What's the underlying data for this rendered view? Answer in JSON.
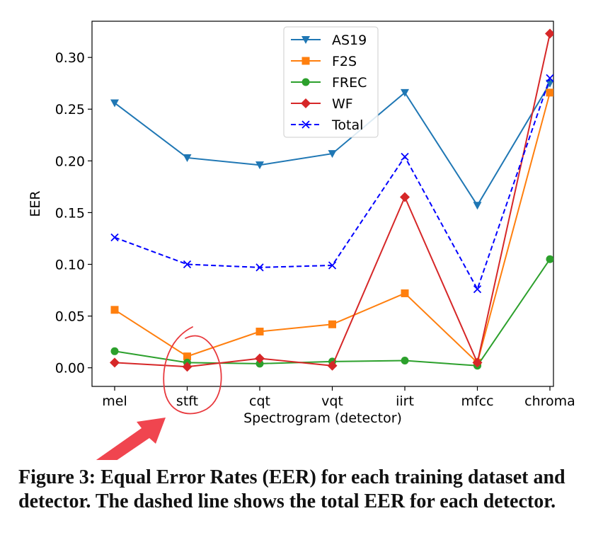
{
  "chart_data": {
    "type": "line",
    "xlabel": "Spectrogram (detector)",
    "ylabel": "EER",
    "categories": [
      "mel",
      "stft",
      "cqt",
      "vqt",
      "iirt",
      "mfcc",
      "chroma"
    ],
    "ylim": [
      -0.018,
      0.335
    ],
    "yticks": [
      0.0,
      0.05,
      0.1,
      0.15,
      0.2,
      0.25,
      0.3
    ],
    "ytick_labels": [
      "0.00",
      "0.05",
      "0.10",
      "0.15",
      "0.20",
      "0.25",
      "0.30"
    ],
    "grid": false,
    "legend_position": "top-center",
    "series": [
      {
        "name": "AS19",
        "color": "#1f77b4",
        "marker": "triangle-down",
        "dashed": false,
        "values": [
          0.256,
          0.203,
          0.196,
          0.207,
          0.266,
          0.157,
          0.275
        ]
      },
      {
        "name": "F2S",
        "color": "#ff7f0e",
        "marker": "square",
        "dashed": false,
        "values": [
          0.056,
          0.011,
          0.035,
          0.042,
          0.072,
          0.005,
          0.266
        ]
      },
      {
        "name": "FREC",
        "color": "#2ca02c",
        "marker": "circle",
        "dashed": false,
        "values": [
          0.016,
          0.005,
          0.004,
          0.006,
          0.007,
          0.002,
          0.105
        ]
      },
      {
        "name": "WF",
        "color": "#d62728",
        "marker": "diamond",
        "dashed": false,
        "values": [
          0.005,
          0.001,
          0.009,
          0.002,
          0.165,
          0.005,
          0.323
        ]
      },
      {
        "name": "Total",
        "color": "#0000ff",
        "marker": "x",
        "dashed": true,
        "values": [
          0.126,
          0.1,
          0.097,
          0.099,
          0.204,
          0.076,
          0.28
        ]
      }
    ]
  },
  "annotation": {
    "circle_color": "#e8383d",
    "arrow_color": "#f0454f",
    "target_category": "stft"
  },
  "caption": "Figure 3: Equal Error Rates (EER) for each training dataset and detector. The dashed line shows the total EER for each detector."
}
